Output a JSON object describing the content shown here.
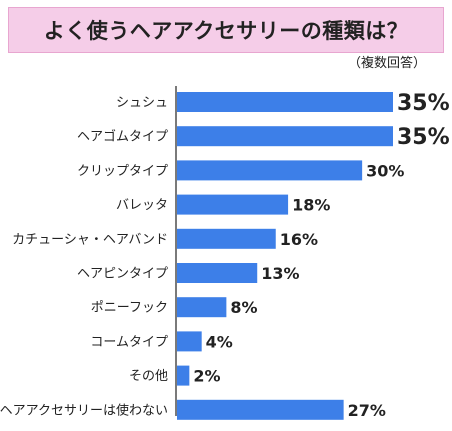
{
  "title": "よく使うヘアアクセサリーの種類は？",
  "subtitle": "（複数回答）",
  "colors": {
    "bar": "#3d7fe8",
    "axis": "#222222",
    "title_bg": "#f5cde8"
  },
  "chart_data": {
    "type": "bar",
    "orientation": "horizontal",
    "categories": [
      "シュシュ",
      "ヘアゴムタイプ",
      "クリップタイプ",
      "バレッタ",
      "カチューシャ・ヘアバンド",
      "ヘアピンタイプ",
      "ポニーフック",
      "コームタイプ",
      "その他",
      "ヘアアクセサリーは使わない"
    ],
    "values": [
      35,
      35,
      30,
      18,
      16,
      13,
      8,
      4,
      2,
      27
    ],
    "labels": [
      "35%",
      "35%",
      "30%",
      "18%",
      "16%",
      "13%",
      "8%",
      "4%",
      "2%",
      "27%"
    ],
    "unit": "%",
    "xlim": [
      0,
      35
    ],
    "grid": false,
    "legend": "none"
  }
}
